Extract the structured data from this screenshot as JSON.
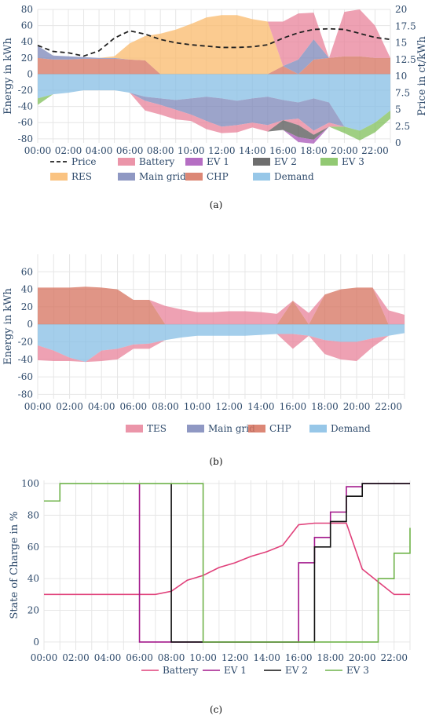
{
  "chart_data": [
    {
      "id": "a",
      "type": "area",
      "caption": "(a)",
      "ylabel": "Energy in kWh",
      "y2label": "Price in ct/kWh",
      "ylim": [
        -85,
        80
      ],
      "yticks": [
        80,
        60,
        40,
        20,
        0,
        -20,
        -40,
        -60,
        -80
      ],
      "y2lim": [
        0,
        20
      ],
      "y2ticks": [
        "20",
        "17.5",
        "15",
        "12.5",
        "10",
        "7.5",
        "5",
        "2.5",
        "0"
      ],
      "xticks": [
        "00:00",
        "02:00",
        "04:00",
        "06:00",
        "08:00",
        "10:00",
        "12:00",
        "14:00",
        "16:00",
        "18:00",
        "20:00",
        "22:00"
      ],
      "colors": {
        "Battery": "#e8829a",
        "EV 1": "#a855b8",
        "EV 2": "#555555",
        "EV 3": "#7fbf5a",
        "RES": "#f9b96b",
        "Main grid": "#7b86b8",
        "CHP": "#d6725e",
        "Demand": "#85bde4"
      },
      "legend": [
        "Price",
        "Battery",
        "EV 1",
        "EV 2",
        "EV 3",
        "RES",
        "Main grid",
        "CHP",
        "Demand"
      ],
      "series": [
        {
          "name": "CHP",
          "values": [
            20,
            18,
            18,
            19,
            19,
            19,
            18,
            17,
            0,
            0,
            0,
            0,
            0,
            0,
            0,
            0,
            10,
            0,
            18,
            20,
            22,
            22,
            20,
            20
          ]
        },
        {
          "name": "Main grid",
          "values": [
            15,
            5,
            4,
            2,
            1,
            1,
            0,
            0,
            0,
            0,
            0,
            0,
            0,
            0,
            0,
            0,
            0,
            18,
            25,
            0,
            0,
            0,
            0,
            0
          ]
        },
        {
          "name": "RES",
          "values": [
            0,
            0,
            0,
            0,
            0,
            2,
            20,
            30,
            50,
            55,
            62,
            70,
            73,
            73,
            68,
            65,
            0,
            0,
            0,
            0,
            0,
            0,
            0,
            0
          ]
        },
        {
          "name": "Battery",
          "values": [
            0,
            0,
            0,
            0,
            0,
            0,
            0,
            0,
            0,
            0,
            0,
            0,
            0,
            0,
            0,
            0,
            55,
            57,
            33,
            0,
            55,
            58,
            40,
            0
          ]
        },
        {
          "name": "Demand",
          "values": [
            -30,
            -25,
            -23,
            -20,
            -20,
            -20,
            -23,
            -28,
            -30,
            -32,
            -30,
            -28,
            -30,
            -33,
            -30,
            -28,
            -32,
            -35,
            -30,
            -35,
            -65,
            -70,
            -60,
            -45
          ]
        },
        {
          "name": "Main grid (export)",
          "values": [
            0,
            0,
            0,
            0,
            0,
            0,
            0,
            -5,
            -8,
            -12,
            -20,
            -30,
            -35,
            -30,
            -30,
            -35,
            -25,
            -20,
            -40,
            -25,
            0,
            0,
            0,
            0
          ]
        },
        {
          "name": "Battery (charge)",
          "values": [
            0,
            0,
            0,
            0,
            0,
            0,
            0,
            -12,
            -12,
            -12,
            -8,
            -10,
            -8,
            -9,
            -6,
            -8,
            0,
            -8,
            -5,
            -5,
            0,
            0,
            0,
            0
          ]
        },
        {
          "name": "EV 2",
          "values": [
            0,
            0,
            0,
            0,
            0,
            0,
            0,
            0,
            0,
            0,
            0,
            0,
            0,
            0,
            0,
            0,
            -12,
            -15,
            -6,
            0,
            0,
            0,
            0,
            0
          ]
        },
        {
          "name": "EV 1",
          "values": [
            0,
            0,
            0,
            0,
            0,
            0,
            0,
            0,
            0,
            0,
            0,
            0,
            0,
            0,
            0,
            0,
            0,
            -6,
            -5,
            0,
            0,
            0,
            0,
            0
          ]
        },
        {
          "name": "EV 3",
          "values": [
            -8,
            0,
            0,
            0,
            0,
            0,
            0,
            0,
            0,
            0,
            0,
            0,
            0,
            0,
            0,
            0,
            0,
            0,
            0,
            0,
            -8,
            -12,
            -12,
            -10
          ]
        }
      ],
      "price": [
        14.6,
        13.7,
        13.5,
        13.0,
        13.8,
        15.7,
        16.8,
        16.3,
        15.5,
        15.0,
        14.7,
        14.5,
        14.3,
        14.3,
        14.4,
        14.7,
        15.7,
        16.5,
        17.0,
        17.1,
        17.0,
        16.4,
        15.8,
        15.5
      ]
    },
    {
      "id": "b",
      "type": "area",
      "caption": "(b)",
      "ylabel": "Energy in kWh",
      "ylim": [
        -85,
        80
      ],
      "yticks": [
        60,
        40,
        20,
        0,
        -20,
        -40,
        -60,
        -80
      ],
      "xticks": [
        "00:00",
        "02:00",
        "04:00",
        "06:00",
        "08:00",
        "10:00",
        "12:00",
        "14:00",
        "16:00",
        "18:00",
        "20:00",
        "22:00"
      ],
      "colors": {
        "TES": "#e8829a",
        "Main grid": "#7b86b8",
        "CHP": "#d6725e",
        "Demand": "#85bde4"
      },
      "legend": [
        "TES",
        "Main grid",
        "CHP",
        "Demand"
      ],
      "series": [
        {
          "name": "CHP",
          "values": [
            42,
            42,
            42,
            43,
            42,
            40,
            28,
            28,
            0,
            0,
            0,
            0,
            0,
            0,
            0,
            0,
            27,
            0,
            34,
            40,
            42,
            42,
            0,
            0
          ]
        },
        {
          "name": "TES",
          "values": [
            0,
            0,
            0,
            0,
            0,
            0,
            0,
            0,
            21,
            17,
            14,
            14,
            15,
            15,
            14,
            12,
            0,
            13,
            0,
            0,
            0,
            0,
            16,
            11
          ]
        },
        {
          "name": "Demand",
          "values": [
            -24,
            -30,
            -38,
            -43,
            -30,
            -28,
            -23,
            -22,
            -18,
            -15,
            -13,
            -13,
            -13,
            -13,
            -12,
            -11,
            -11,
            -13,
            -18,
            -20,
            -20,
            -16,
            -13,
            -10
          ]
        },
        {
          "name": "TES (charge)",
          "values": [
            -17,
            -12,
            -4,
            0,
            -12,
            -12,
            -5,
            -6,
            0,
            0,
            0,
            0,
            0,
            0,
            0,
            0,
            -17,
            0,
            -16,
            -20,
            -22,
            -10,
            0,
            0
          ]
        }
      ]
    },
    {
      "id": "c",
      "type": "line",
      "caption": "(c)",
      "ylabel": "State of Charge in %",
      "ylim": [
        -5,
        102
      ],
      "yticks": [
        100,
        80,
        60,
        40,
        20,
        0
      ],
      "xticks": [
        "00:00",
        "02:00",
        "04:00",
        "06:00",
        "08:00",
        "10:00",
        "12:00",
        "14:00",
        "16:00",
        "18:00",
        "20:00",
        "22:00"
      ],
      "legend": [
        "Battery",
        "EV 1",
        "EV 2",
        "EV 3"
      ],
      "series": [
        {
          "name": "Battery",
          "color": "#e0407a",
          "step": false,
          "values": [
            30,
            30,
            30,
            30,
            30,
            30,
            30,
            30,
            32,
            39,
            42,
            47,
            50,
            54,
            57,
            61,
            74,
            75,
            75,
            75,
            46,
            38,
            30,
            30
          ]
        },
        {
          "name": "EV 1",
          "color": "#a3198c",
          "step": true,
          "values": [
            null,
            null,
            null,
            null,
            null,
            null,
            0,
            0,
            0,
            0,
            0,
            0,
            0,
            0,
            0,
            0,
            50,
            66,
            82,
            98,
            100,
            100,
            100,
            100
          ]
        },
        {
          "name": "EV 2",
          "color": "#111111",
          "step": true,
          "values": [
            null,
            null,
            null,
            null,
            null,
            null,
            null,
            null,
            0,
            0,
            0,
            0,
            0,
            0,
            0,
            0,
            0,
            60,
            76,
            92,
            100,
            100,
            100,
            100
          ]
        },
        {
          "name": "EV 3",
          "color": "#6fb34a",
          "step": true,
          "values": [
            89,
            100,
            100,
            100,
            100,
            100,
            100,
            100,
            100,
            100,
            0,
            0,
            0,
            0,
            0,
            0,
            0,
            0,
            0,
            0,
            0,
            40,
            56,
            72
          ]
        }
      ]
    }
  ]
}
